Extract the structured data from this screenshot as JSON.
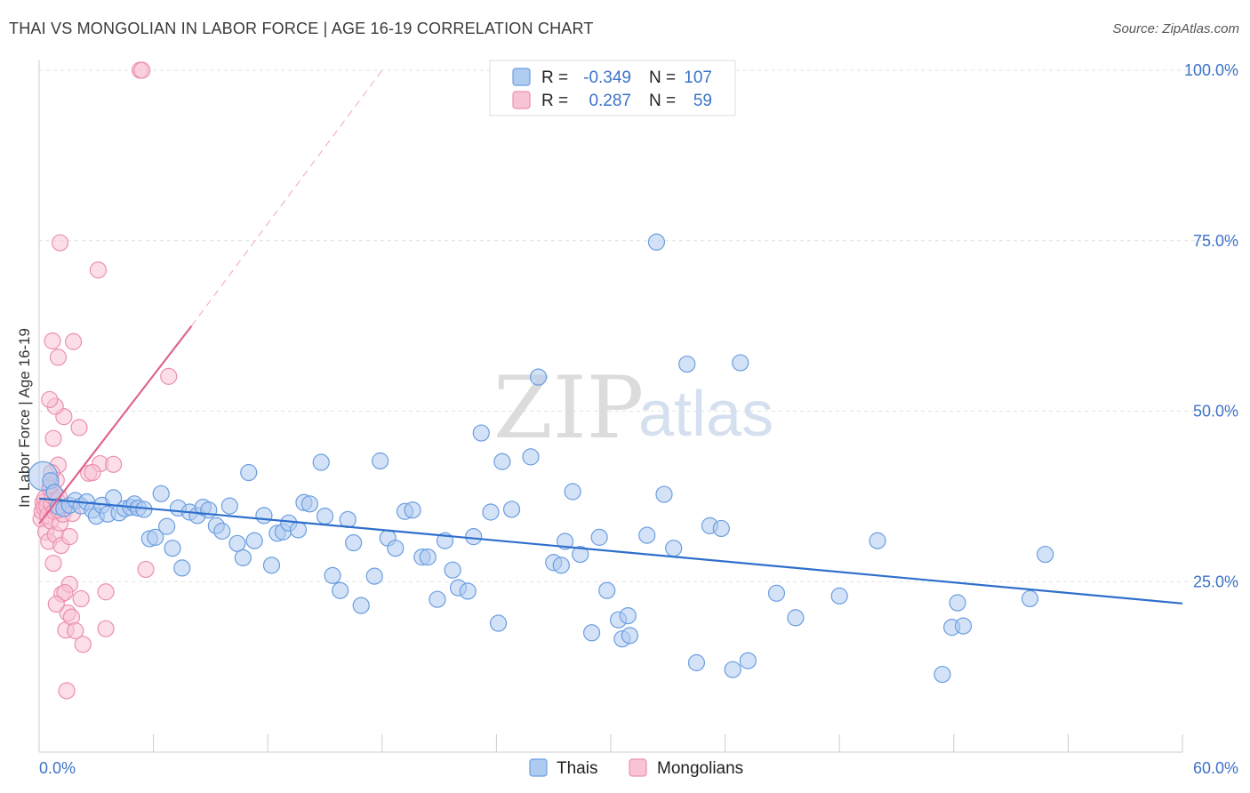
{
  "title": "THAI VS MONGOLIAN IN LABOR FORCE | AGE 16-19 CORRELATION CHART",
  "source": "Source: ZipAtlas.com",
  "watermark": {
    "zip": "ZIP",
    "atlas": "atlas"
  },
  "colors": {
    "thais": "#6b9ee0",
    "thais_fill": "#aecbf0",
    "mongolians": "#ec8fb0",
    "mongolians_fill": "#f7c3d5",
    "thais_line": "#2e6fcc",
    "mongolians_line": "#e0648e"
  },
  "legend": {
    "rows": [
      {
        "r_label": "R =",
        "r_value": "-0.349",
        "n_label": "N =",
        "n_value": "107"
      },
      {
        "r_label": "R =",
        "r_value": "0.287",
        "n_label": "N =",
        "n_value": "59"
      }
    ]
  },
  "bottom_legend": [
    "Thais",
    "Mongolians"
  ],
  "chart_data": {
    "type": "scatter",
    "xlabel": "",
    "ylabel": "In Labor Force | Age 16-19",
    "xlim": [
      0,
      60
    ],
    "ylim": [
      0,
      100
    ],
    "x_tick_labels": [
      "0.0%",
      "60.0%"
    ],
    "y_tick_labels": [
      "100.0%",
      "75.0%",
      "50.0%",
      "25.0%"
    ],
    "y_ticks": [
      100,
      75,
      50,
      25
    ],
    "grid": true,
    "legend_position": "top-center",
    "series": [
      {
        "name": "Thais",
        "trend": {
          "x": [
            0,
            60
          ],
          "y": [
            37.2,
            21.8
          ]
        },
        "points": [
          [
            0.2,
            40.5
          ],
          [
            0.6,
            39.8
          ],
          [
            0.8,
            38.1
          ],
          [
            1.0,
            36.0
          ],
          [
            1.3,
            35.7
          ],
          [
            1.6,
            36.2
          ],
          [
            1.9,
            36.9
          ],
          [
            2.2,
            36.1
          ],
          [
            2.5,
            36.7
          ],
          [
            2.8,
            35.5
          ],
          [
            3.0,
            34.6
          ],
          [
            3.3,
            36.2
          ],
          [
            3.6,
            34.9
          ],
          [
            3.9,
            37.3
          ],
          [
            4.2,
            35.1
          ],
          [
            4.5,
            35.7
          ],
          [
            4.8,
            35.9
          ],
          [
            5.0,
            36.4
          ],
          [
            5.2,
            35.8
          ],
          [
            5.5,
            35.6
          ],
          [
            5.8,
            31.3
          ],
          [
            6.1,
            31.5
          ],
          [
            6.4,
            37.9
          ],
          [
            6.7,
            33.1
          ],
          [
            7.0,
            29.9
          ],
          [
            7.3,
            35.8
          ],
          [
            7.5,
            27.0
          ],
          [
            7.9,
            35.2
          ],
          [
            8.3,
            34.7
          ],
          [
            8.6,
            35.9
          ],
          [
            8.9,
            35.5
          ],
          [
            9.3,
            33.2
          ],
          [
            9.6,
            32.4
          ],
          [
            10.0,
            36.1
          ],
          [
            10.4,
            30.6
          ],
          [
            10.7,
            28.5
          ],
          [
            11.0,
            41.0
          ],
          [
            11.3,
            31.0
          ],
          [
            11.8,
            34.7
          ],
          [
            12.2,
            27.4
          ],
          [
            12.5,
            32.1
          ],
          [
            12.8,
            32.3
          ],
          [
            13.1,
            33.6
          ],
          [
            13.6,
            32.6
          ],
          [
            13.9,
            36.6
          ],
          [
            14.2,
            36.4
          ],
          [
            14.8,
            42.5
          ],
          [
            15.0,
            34.6
          ],
          [
            15.4,
            25.9
          ],
          [
            15.8,
            23.7
          ],
          [
            16.2,
            34.1
          ],
          [
            16.5,
            30.7
          ],
          [
            16.9,
            21.5
          ],
          [
            17.6,
            25.8
          ],
          [
            17.9,
            42.7
          ],
          [
            18.3,
            31.4
          ],
          [
            18.7,
            29.9
          ],
          [
            19.2,
            35.3
          ],
          [
            19.6,
            35.5
          ],
          [
            20.1,
            28.6
          ],
          [
            20.4,
            28.6
          ],
          [
            20.9,
            22.4
          ],
          [
            21.3,
            31.0
          ],
          [
            21.7,
            26.7
          ],
          [
            22.0,
            24.1
          ],
          [
            22.5,
            23.6
          ],
          [
            22.8,
            31.6
          ],
          [
            23.2,
            46.8
          ],
          [
            23.7,
            35.2
          ],
          [
            24.1,
            18.9
          ],
          [
            24.3,
            42.6
          ],
          [
            24.8,
            35.6
          ],
          [
            25.8,
            43.3
          ],
          [
            26.2,
            55.0
          ],
          [
            27.0,
            27.8
          ],
          [
            27.4,
            27.4
          ],
          [
            27.6,
            30.9
          ],
          [
            28.0,
            38.2
          ],
          [
            28.4,
            29.0
          ],
          [
            29.0,
            17.5
          ],
          [
            29.4,
            31.5
          ],
          [
            29.8,
            23.7
          ],
          [
            30.4,
            19.4
          ],
          [
            30.6,
            16.6
          ],
          [
            31.0,
            17.1
          ],
          [
            31.9,
            31.8
          ],
          [
            32.4,
            74.8
          ],
          [
            32.8,
            37.8
          ],
          [
            33.3,
            29.9
          ],
          [
            34.0,
            56.9
          ],
          [
            34.5,
            13.1
          ],
          [
            35.2,
            33.2
          ],
          [
            35.8,
            32.8
          ],
          [
            36.4,
            12.1
          ],
          [
            36.8,
            57.1
          ],
          [
            37.2,
            13.4
          ],
          [
            38.7,
            23.3
          ],
          [
            39.7,
            19.7
          ],
          [
            42.0,
            22.9
          ],
          [
            44.0,
            31.0
          ],
          [
            47.4,
            11.4
          ],
          [
            47.9,
            18.3
          ],
          [
            48.2,
            21.9
          ],
          [
            48.5,
            18.5
          ],
          [
            52.0,
            22.5
          ],
          [
            52.8,
            29.0
          ],
          [
            30.9,
            20.0
          ]
        ]
      },
      {
        "name": "Mongolians",
        "trend": {
          "x": [
            0,
            8
          ],
          "y": [
            33.5,
            62.5
          ]
        },
        "trend_extended": {
          "x": [
            8,
            18
          ],
          "y": [
            62.5,
            100
          ]
        },
        "points": [
          [
            0.1,
            34.2
          ],
          [
            0.15,
            35.3
          ],
          [
            0.2,
            36.6
          ],
          [
            0.25,
            35.9
          ],
          [
            0.3,
            37.2
          ],
          [
            0.35,
            32.3
          ],
          [
            0.4,
            36.1
          ],
          [
            0.45,
            34.7
          ],
          [
            0.5,
            30.9
          ],
          [
            0.55,
            38.7
          ],
          [
            0.6,
            33.9
          ],
          [
            0.65,
            36.4
          ],
          [
            0.7,
            37.5
          ],
          [
            0.75,
            27.7
          ],
          [
            0.8,
            35.3
          ],
          [
            0.85,
            31.9
          ],
          [
            0.9,
            39.9
          ],
          [
            0.95,
            36.8
          ],
          [
            1.0,
            42.1
          ],
          [
            1.05,
            37.4
          ],
          [
            1.1,
            33.6
          ],
          [
            1.15,
            30.3
          ],
          [
            1.2,
            23.2
          ],
          [
            1.3,
            49.2
          ],
          [
            1.4,
            17.9
          ],
          [
            1.5,
            20.4
          ],
          [
            1.6,
            24.6
          ],
          [
            1.7,
            19.8
          ],
          [
            0.75,
            46.0
          ],
          [
            0.85,
            50.7
          ],
          [
            0.55,
            51.7
          ],
          [
            0.7,
            60.3
          ],
          [
            1.0,
            57.9
          ],
          [
            1.8,
            60.2
          ],
          [
            1.1,
            74.7
          ],
          [
            3.1,
            70.7
          ],
          [
            5.3,
            100.0
          ],
          [
            5.4,
            100.0
          ],
          [
            6.8,
            55.1
          ],
          [
            2.1,
            47.6
          ],
          [
            2.6,
            40.9
          ],
          [
            3.2,
            42.3
          ],
          [
            3.9,
            42.2
          ],
          [
            2.8,
            41.0
          ],
          [
            3.5,
            23.5
          ],
          [
            3.5,
            18.1
          ],
          [
            2.2,
            22.5
          ],
          [
            2.3,
            15.8
          ],
          [
            1.45,
            9.0
          ],
          [
            1.35,
            23.4
          ],
          [
            0.9,
            21.7
          ],
          [
            1.25,
            34.9
          ],
          [
            0.6,
            39.1
          ],
          [
            0.65,
            41.0
          ],
          [
            1.0,
            35.5
          ],
          [
            1.6,
            31.6
          ],
          [
            1.75,
            35.0
          ],
          [
            5.6,
            26.8
          ],
          [
            1.9,
            17.8
          ]
        ]
      }
    ]
  }
}
